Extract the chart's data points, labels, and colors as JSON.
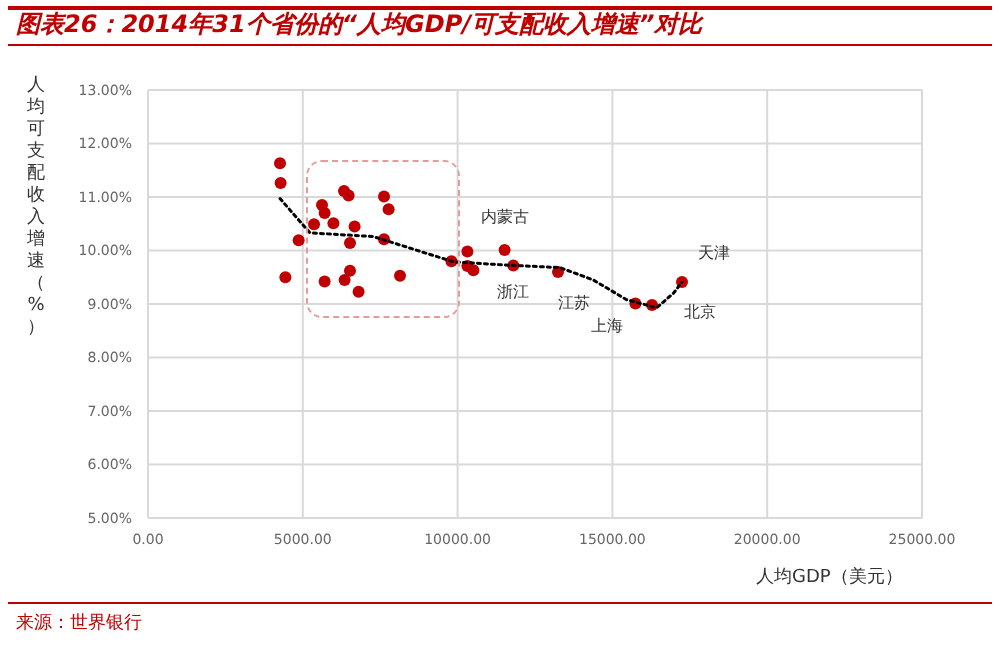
{
  "chart_data": {
    "type": "scatter",
    "title": "图表26：2014年31个省份的“人均GDP/可支配收入增速”对比",
    "xlabel": "人均GDP（美元）",
    "ylabel": "人均可支配收入增速（%）",
    "xlim": [
      0,
      25000
    ],
    "xticks": [
      {
        "value": 0,
        "label": "0.00"
      },
      {
        "value": 5000,
        "label": "5000.00"
      },
      {
        "value": 10000,
        "label": "10000.00"
      },
      {
        "value": 15000,
        "label": "15000.00"
      },
      {
        "value": 20000,
        "label": "20000.00"
      },
      {
        "value": 25000,
        "label": "25000.00"
      }
    ],
    "ylim": [
      5,
      13
    ],
    "yticks": [
      {
        "value": 5,
        "label": "5.00%"
      },
      {
        "value": 6,
        "label": "6.00%"
      },
      {
        "value": 7,
        "label": "7.00%"
      },
      {
        "value": 8,
        "label": "8.00%"
      },
      {
        "value": 9,
        "label": "9.00%"
      },
      {
        "value": 10,
        "label": "10.00%"
      },
      {
        "value": 11,
        "label": "11.00%"
      },
      {
        "value": 12,
        "label": "12.00%"
      },
      {
        "value": 13,
        "label": "13.00%"
      }
    ],
    "grid": true,
    "marker": "circle",
    "series": [
      {
        "color": "#c00000",
        "x": [
          4264,
          4283,
          4437,
          4866,
          5362,
          5620,
          5705,
          5705,
          5988,
          6331,
          6479,
          6673,
          6524,
          6350,
          6524,
          6802,
          7623,
          7772,
          7623,
          8140,
          9800,
          10317,
          10317,
          10510,
          11518,
          11800,
          13243,
          15743,
          16280,
          17248
        ],
        "values": [
          11.63,
          11.26,
          9.5,
          10.19,
          10.49,
          10.85,
          10.7,
          9.42,
          10.51,
          11.11,
          11.03,
          10.45,
          10.14,
          9.45,
          9.62,
          9.23,
          11.01,
          10.77,
          10.21,
          9.53,
          9.8,
          9.98,
          9.71,
          9.63,
          10.01,
          9.72,
          9.6,
          9.01,
          8.98,
          9.41
        ]
      },
      {
        "type": "line",
        "color": "#000000",
        "line_style": "dotted",
        "marker": "none",
        "x": [
          4264,
          5233,
          7280,
          9860,
          11480,
          13308,
          14380,
          15460,
          16430,
          16970,
          17248
        ],
        "values": [
          10.97,
          10.33,
          10.26,
          9.79,
          9.73,
          9.68,
          9.45,
          9.08,
          8.93,
          9.2,
          9.41
        ]
      }
    ],
    "annotations": [
      {
        "text": "内蒙古",
        "x": 11518,
        "y": 10.01
      },
      {
        "text": "浙江",
        "x": 11800,
        "y": 9.72
      },
      {
        "text": "江苏",
        "x": 13243,
        "y": 9.6
      },
      {
        "text": "上海",
        "x": 15743,
        "y": 9.01
      },
      {
        "text": "北京",
        "x": 16280,
        "y": 8.98
      },
      {
        "text": "天津",
        "x": 17248,
        "y": 9.41
      },
      "来源：世界银行"
    ]
  }
}
